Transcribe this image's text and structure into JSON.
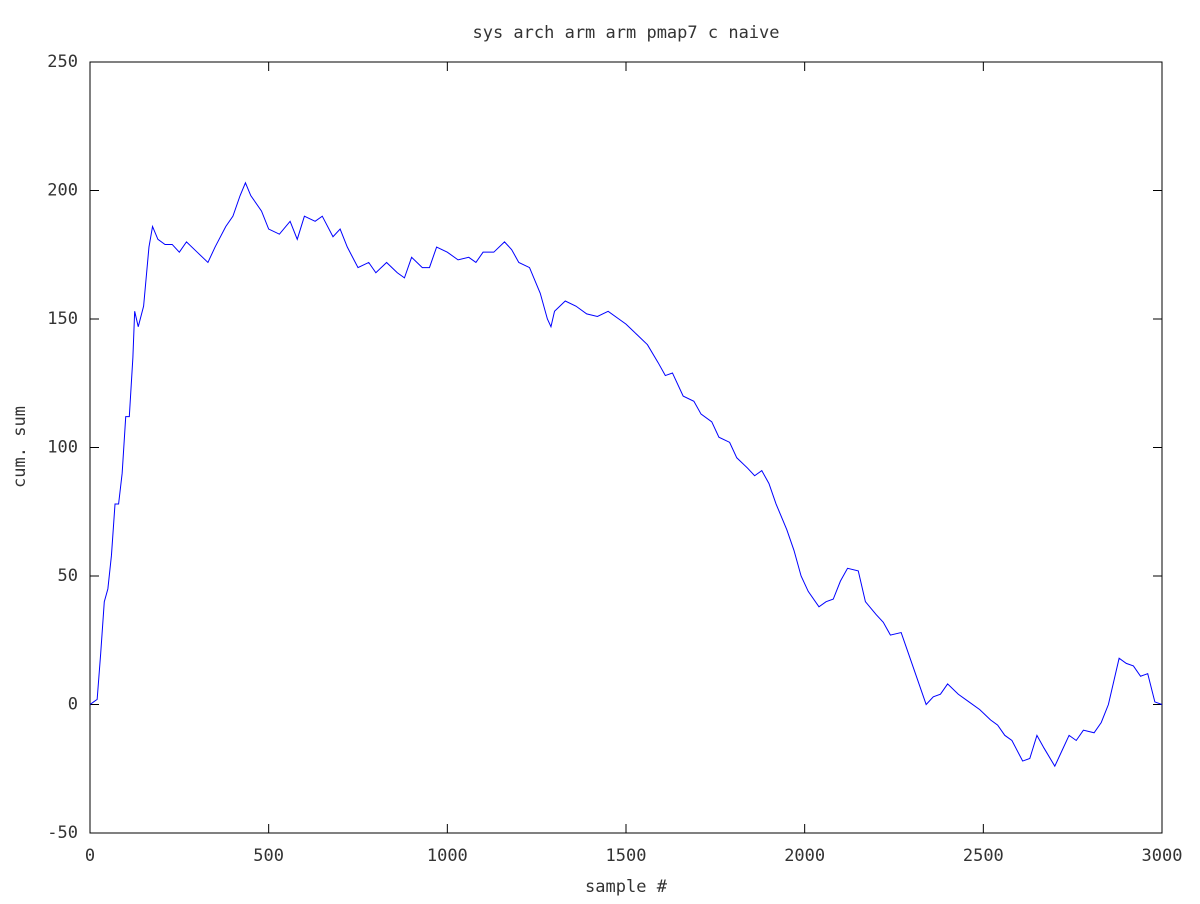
{
  "chart_data": {
    "type": "line",
    "title": "sys arch arm arm pmap7 c naive",
    "x_label": "sample #",
    "y_label": "cum. sum",
    "x": [
      0,
      10,
      20,
      30,
      40,
      50,
      60,
      70,
      80,
      90,
      100,
      110,
      120,
      125,
      135,
      150,
      165,
      175,
      190,
      210,
      230,
      250,
      270,
      300,
      330,
      350,
      380,
      400,
      420,
      435,
      450,
      480,
      500,
      530,
      560,
      580,
      600,
      630,
      650,
      680,
      700,
      720,
      750,
      780,
      800,
      830,
      860,
      880,
      900,
      930,
      950,
      970,
      1000,
      1030,
      1060,
      1080,
      1100,
      1130,
      1160,
      1180,
      1200,
      1230,
      1260,
      1280,
      1290,
      1300,
      1330,
      1360,
      1390,
      1420,
      1450,
      1480,
      1500,
      1530,
      1560,
      1590,
      1610,
      1630,
      1660,
      1690,
      1710,
      1740,
      1760,
      1790,
      1810,
      1840,
      1860,
      1880,
      1900,
      1920,
      1950,
      1970,
      1990,
      2010,
      2040,
      2060,
      2080,
      2100,
      2120,
      2150,
      2170,
      2200,
      2220,
      2240,
      2270,
      2290,
      2320,
      2340,
      2360,
      2380,
      2400,
      2430,
      2460,
      2490,
      2520,
      2540,
      2560,
      2580,
      2610,
      2630,
      2650,
      2670,
      2700,
      2720,
      2740,
      2760,
      2780,
      2810,
      2830,
      2850,
      2870,
      2880,
      2900,
      2920,
      2940,
      2960,
      2980,
      3000
    ],
    "series": [
      {
        "name": "cum. sum",
        "color": "#0000ff",
        "values": [
          0,
          1,
          2,
          20,
          40,
          45,
          58,
          78,
          78,
          90,
          112,
          112,
          135,
          153,
          147,
          155,
          178,
          186,
          181,
          179,
          179,
          176,
          180,
          176,
          172,
          178,
          186,
          190,
          198,
          203,
          198,
          192,
          185,
          183,
          188,
          181,
          190,
          188,
          190,
          182,
          185,
          178,
          170,
          172,
          168,
          172,
          168,
          166,
          174,
          170,
          170,
          178,
          176,
          173,
          174,
          172,
          176,
          176,
          180,
          177,
          172,
          170,
          160,
          150,
          147,
          153,
          157,
          155,
          152,
          151,
          153,
          150,
          148,
          144,
          140,
          133,
          128,
          129,
          120,
          118,
          113,
          110,
          104,
          102,
          96,
          92,
          89,
          91,
          86,
          78,
          68,
          60,
          50,
          44,
          38,
          40,
          41,
          48,
          53,
          52,
          40,
          35,
          32,
          27,
          28,
          20,
          8,
          0,
          3,
          4,
          8,
          4,
          1,
          -2,
          -6,
          -8,
          -12,
          -14,
          -22,
          -21,
          -12,
          -17,
          -24,
          -18,
          -12,
          -14,
          -10,
          -11,
          -7,
          0,
          12,
          18,
          16,
          15,
          11,
          12,
          1,
          0
        ]
      }
    ],
    "xlim": [
      0,
      3000
    ],
    "xticks": [
      0,
      500,
      1000,
      1500,
      2000,
      2500,
      3000
    ],
    "ylim": [
      -50,
      250
    ],
    "yticks": [
      -50,
      0,
      50,
      100,
      150,
      200,
      250
    ]
  }
}
